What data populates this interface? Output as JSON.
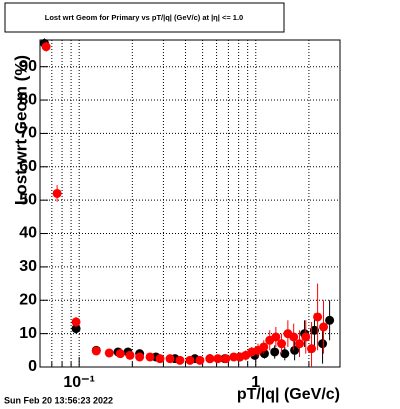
{
  "chart_data": {
    "type": "scatter",
    "title": "Lost wrt Geom for Primary vs pT/|q| (GeV/c) at |η| <= 1.0",
    "xlabel": "pT/|q| (GeV/c)",
    "ylabel": "Lost wrt Geom (%)",
    "footer": "Sun Feb 20 13:56:23 2022",
    "xscale": "log",
    "grid": true,
    "xlim": [
      0.06,
      3
    ],
    "ylim": [
      0,
      98
    ],
    "xticks": [
      {
        "value": 0.1,
        "label": "10⁻¹"
      },
      1
    ],
    "xminor": [
      0.07,
      0.08,
      0.09,
      0.2,
      0.3,
      0.4,
      0.5,
      0.6,
      0.7,
      0.8,
      0.9,
      2,
      3
    ],
    "yticks": [
      0,
      10,
      20,
      30,
      40,
      50,
      60,
      70,
      80,
      90
    ],
    "series": [
      {
        "color": "#000000",
        "x": [
          0.0636,
          0.096,
          0.125,
          0.166,
          0.189,
          0.22,
          0.272,
          0.349,
          0.452,
          0.55,
          0.668,
          0.812,
          0.987,
          1.12,
          1.28,
          1.46,
          1.66,
          1.89,
          2.15,
          2.39,
          2.62
        ],
        "values": [
          97,
          11.5,
          5,
          4.5,
          4.5,
          4,
          3,
          2.5,
          2.5,
          2.5,
          2.5,
          3,
          3.5,
          4,
          4.5,
          4,
          5,
          10,
          11,
          7,
          14
        ],
        "errors": [
          1.5,
          1.5,
          1,
          1,
          1,
          1,
          0.8,
          0.8,
          0.8,
          0.8,
          0.8,
          1,
          1,
          1.5,
          2,
          2,
          3,
          4,
          5,
          6,
          6
        ]
      },
      {
        "color": "#ff0000",
        "x": [
          0.065,
          0.075,
          0.096,
          0.125,
          0.148,
          0.171,
          0.194,
          0.22,
          0.252,
          0.287,
          0.327,
          0.372,
          0.424,
          0.483,
          0.55,
          0.61,
          0.677,
          0.751,
          0.812,
          0.878,
          0.949,
          1.03,
          1.11,
          1.2,
          1.3,
          1.4,
          1.52,
          1.64,
          1.77,
          1.92,
          2.07,
          2.24,
          2.42
        ],
        "values": [
          96,
          52,
          13.5,
          4.8,
          4.2,
          4,
          3.5,
          3,
          3,
          2.5,
          2.5,
          2,
          2,
          2,
          2.5,
          2.5,
          2.5,
          3,
          3,
          3.5,
          4.5,
          5,
          6,
          8,
          9,
          7,
          10,
          9,
          7,
          9,
          5.5,
          15,
          12
        ],
        "errors": [
          1.5,
          2.5,
          1.5,
          1,
          1,
          1,
          0.8,
          0.8,
          0.8,
          0.8,
          0.8,
          0.8,
          0.8,
          0.8,
          0.8,
          1,
          1,
          1,
          1,
          1.5,
          1.5,
          2,
          2,
          3,
          3,
          3,
          4,
          4,
          4,
          5,
          8,
          10,
          8
        ]
      }
    ]
  }
}
